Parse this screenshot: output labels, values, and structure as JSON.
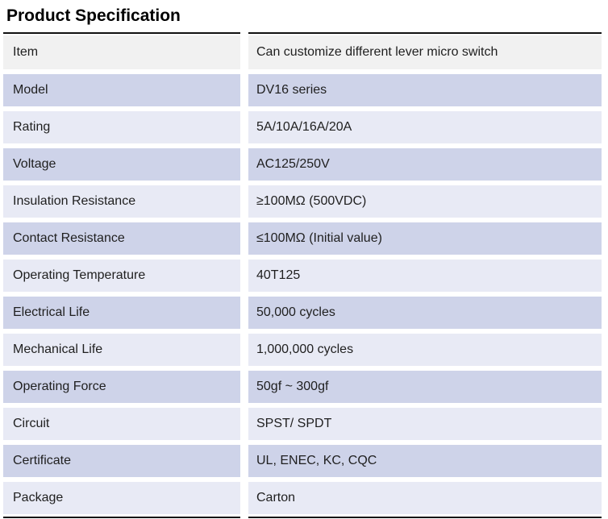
{
  "page": {
    "title": "Product Specification"
  },
  "colors": {
    "header_row_bg": "#f1f1f1",
    "stripe_dark": "#ced3e9",
    "stripe_light": "#e8eaf5",
    "rule": "#111111",
    "text": "#1f1f1f"
  },
  "table": {
    "header": {
      "key": "Item",
      "value": "Can customize different lever micro switch"
    },
    "rows": [
      {
        "key": "Model",
        "value": "DV16 series"
      },
      {
        "key": "Rating",
        "value": "5A/10A/16A/20A"
      },
      {
        "key": "Voltage",
        "value": "AC125/250V"
      },
      {
        "key": "Insulation Resistance",
        "value": "≥100MΩ (500VDC)"
      },
      {
        "key": "Contact Resistance",
        "value": "≤100MΩ (Initial value)"
      },
      {
        "key": "Operating Temperature",
        "value": "40T125"
      },
      {
        "key": "Electrical Life",
        "value": "50,000 cycles"
      },
      {
        "key": "Mechanical Life",
        "value": "1,000,000 cycles"
      },
      {
        "key": "Operating Force",
        "value": "50gf ~ 300gf"
      },
      {
        "key": "Circuit",
        "value": "SPST/ SPDT"
      },
      {
        "key": "Certificate",
        "value": "UL, ENEC, KC, CQC"
      },
      {
        "key": "Package",
        "value": "Carton"
      }
    ]
  }
}
